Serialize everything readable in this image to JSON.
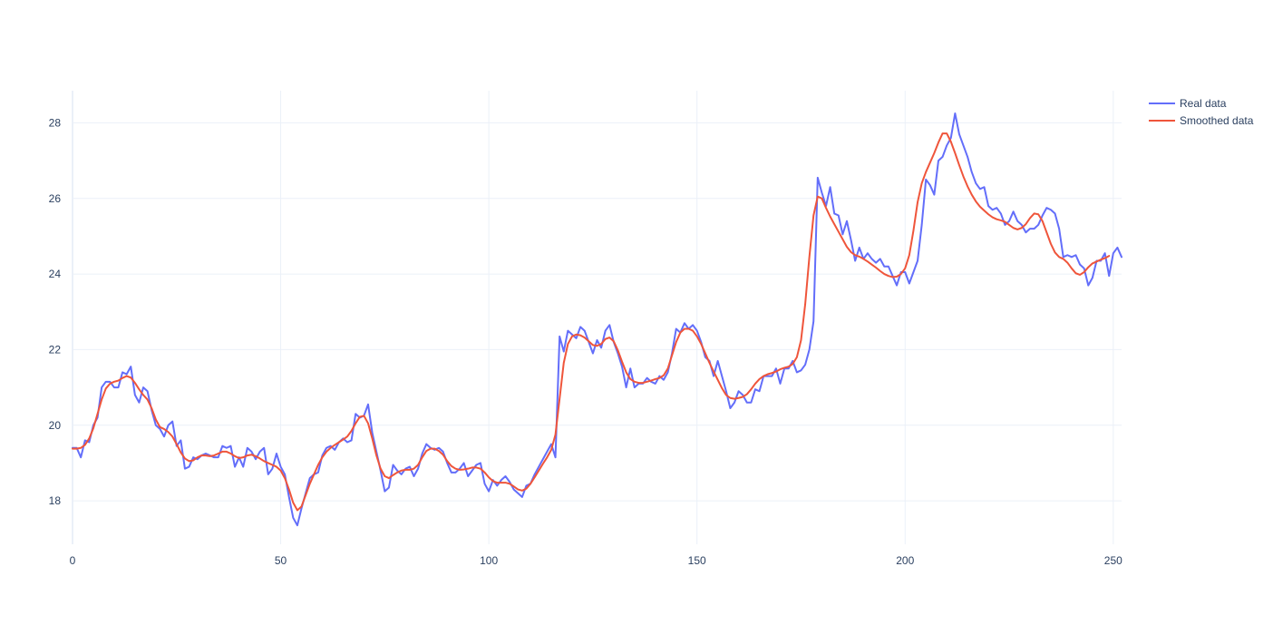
{
  "chart_data": {
    "type": "line",
    "title": "",
    "xlabel": "",
    "ylabel": "",
    "xlim": [
      0,
      252
    ],
    "ylim": [
      16.85,
      28.85
    ],
    "x_ticks": [
      0,
      50,
      100,
      150,
      200,
      250
    ],
    "y_ticks": [
      18,
      20,
      22,
      24,
      26,
      28
    ],
    "grid": true,
    "legend_position": "top-right",
    "series": [
      {
        "name": "Real data",
        "color": "#636efa",
        "x_step": 1,
        "values": [
          19.4,
          19.4,
          19.15,
          19.6,
          19.55,
          20.0,
          20.2,
          21.0,
          21.15,
          21.15,
          21.0,
          21.0,
          21.4,
          21.35,
          21.55,
          20.8,
          20.6,
          21.0,
          20.9,
          20.4,
          20.0,
          19.9,
          19.7,
          20.0,
          20.1,
          19.45,
          19.6,
          18.85,
          18.9,
          19.15,
          19.1,
          19.2,
          19.25,
          19.2,
          19.15,
          19.15,
          19.45,
          19.4,
          19.45,
          18.9,
          19.15,
          18.9,
          19.4,
          19.3,
          19.1,
          19.3,
          19.4,
          18.7,
          18.85,
          19.25,
          18.9,
          18.7,
          18.1,
          17.55,
          17.35,
          17.8,
          18.2,
          18.6,
          18.7,
          18.75,
          19.2,
          19.4,
          19.45,
          19.35,
          19.55,
          19.65,
          19.55,
          19.6,
          20.3,
          20.2,
          20.25,
          20.55,
          19.8,
          19.3,
          18.8,
          18.25,
          18.35,
          18.95,
          18.8,
          18.7,
          18.85,
          18.9,
          18.65,
          18.85,
          19.25,
          19.5,
          19.4,
          19.35,
          19.4,
          19.3,
          19.0,
          18.75,
          18.75,
          18.85,
          19.0,
          18.65,
          18.8,
          18.95,
          19.0,
          18.45,
          18.25,
          18.55,
          18.4,
          18.55,
          18.65,
          18.5,
          18.3,
          18.2,
          18.1,
          18.4,
          18.45,
          18.7,
          18.9,
          19.1,
          19.3,
          19.5,
          19.15,
          22.35,
          21.95,
          22.5,
          22.4,
          22.3,
          22.6,
          22.5,
          22.2,
          21.9,
          22.25,
          22.05,
          22.5,
          22.65,
          22.2,
          21.9,
          21.55,
          21.0,
          21.5,
          21.0,
          21.1,
          21.1,
          21.25,
          21.15,
          21.1,
          21.3,
          21.2,
          21.4,
          21.9,
          22.55,
          22.45,
          22.7,
          22.55,
          22.65,
          22.5,
          22.2,
          21.8,
          21.7,
          21.3,
          21.7,
          21.3,
          20.9,
          20.45,
          20.6,
          20.9,
          20.8,
          20.6,
          20.6,
          20.95,
          20.9,
          21.3,
          21.3,
          21.3,
          21.5,
          21.1,
          21.5,
          21.5,
          21.7,
          21.4,
          21.45,
          21.6,
          22.0,
          22.75,
          26.55,
          26.15,
          25.8,
          26.3,
          25.6,
          25.55,
          25.05,
          25.4,
          24.9,
          24.35,
          24.7,
          24.4,
          24.55,
          24.4,
          24.3,
          24.4,
          24.2,
          24.2,
          23.95,
          23.7,
          24.05,
          24.05,
          23.75,
          24.05,
          24.35,
          25.3,
          26.5,
          26.35,
          26.1,
          27.0,
          27.1,
          27.4,
          27.6,
          28.25,
          27.7,
          27.4,
          27.1,
          26.7,
          26.4,
          26.25,
          26.3,
          25.8,
          25.7,
          25.75,
          25.6,
          25.3,
          25.4,
          25.65,
          25.4,
          25.3,
          25.1,
          25.2,
          25.2,
          25.3,
          25.55,
          25.75,
          25.7,
          25.6,
          25.2,
          24.45,
          24.5,
          24.45,
          24.5,
          24.25,
          24.15,
          23.7,
          23.9,
          24.35,
          24.35,
          24.55,
          23.95,
          24.55,
          24.7,
          24.45
        ]
      },
      {
        "name": "Smoothed data",
        "color": "#ef553b",
        "x_step": 1,
        "values": [
          19.38,
          19.38,
          19.4,
          19.48,
          19.65,
          19.92,
          20.3,
          20.68,
          20.97,
          21.1,
          21.15,
          21.18,
          21.25,
          21.3,
          21.26,
          21.12,
          20.95,
          20.8,
          20.68,
          20.45,
          20.15,
          19.95,
          19.9,
          19.82,
          19.7,
          19.5,
          19.28,
          19.12,
          19.05,
          19.07,
          19.15,
          19.2,
          19.2,
          19.18,
          19.2,
          19.25,
          19.3,
          19.3,
          19.25,
          19.18,
          19.13,
          19.15,
          19.2,
          19.22,
          19.18,
          19.12,
          19.05,
          19.0,
          18.95,
          18.9,
          18.8,
          18.6,
          18.3,
          17.95,
          17.75,
          17.85,
          18.15,
          18.45,
          18.7,
          18.95,
          19.15,
          19.3,
          19.4,
          19.48,
          19.55,
          19.62,
          19.7,
          19.85,
          20.05,
          20.22,
          20.25,
          20.05,
          19.65,
          19.2,
          18.85,
          18.65,
          18.6,
          18.68,
          18.75,
          18.8,
          18.82,
          18.82,
          18.85,
          18.95,
          19.15,
          19.32,
          19.38,
          19.38,
          19.32,
          19.22,
          19.05,
          18.92,
          18.85,
          18.82,
          18.83,
          18.85,
          18.88,
          18.88,
          18.85,
          18.75,
          18.62,
          18.52,
          18.48,
          18.48,
          18.48,
          18.45,
          18.38,
          18.3,
          18.27,
          18.32,
          18.45,
          18.62,
          18.8,
          18.98,
          19.15,
          19.35,
          19.75,
          20.7,
          21.65,
          22.15,
          22.35,
          22.4,
          22.38,
          22.32,
          22.22,
          22.12,
          22.1,
          22.15,
          22.28,
          22.32,
          22.22,
          21.98,
          21.68,
          21.4,
          21.22,
          21.15,
          21.12,
          21.12,
          21.15,
          21.18,
          21.22,
          21.25,
          21.32,
          21.5,
          21.85,
          22.2,
          22.45,
          22.55,
          22.55,
          22.5,
          22.35,
          22.15,
          21.9,
          21.65,
          21.42,
          21.2,
          20.98,
          20.8,
          20.72,
          20.7,
          20.72,
          20.75,
          20.82,
          20.95,
          21.1,
          21.22,
          21.3,
          21.35,
          21.38,
          21.42,
          21.48,
          21.52,
          21.55,
          21.62,
          21.8,
          22.25,
          23.2,
          24.45,
          25.55,
          26.05,
          26.0,
          25.75,
          25.52,
          25.32,
          25.12,
          24.92,
          24.72,
          24.58,
          24.5,
          24.46,
          24.4,
          24.33,
          24.25,
          24.17,
          24.08,
          24.0,
          23.95,
          23.92,
          23.93,
          24.0,
          24.15,
          24.5,
          25.15,
          25.9,
          26.4,
          26.7,
          26.95,
          27.2,
          27.48,
          27.72,
          27.72,
          27.5,
          27.2,
          26.88,
          26.58,
          26.32,
          26.1,
          25.92,
          25.78,
          25.68,
          25.58,
          25.5,
          25.45,
          25.42,
          25.38,
          25.3,
          25.22,
          25.18,
          25.22,
          25.32,
          25.48,
          25.6,
          25.58,
          25.4,
          25.1,
          24.8,
          24.57,
          24.45,
          24.4,
          24.3,
          24.15,
          24.02,
          23.98,
          24.05,
          24.18,
          24.28,
          24.33,
          24.38,
          24.42,
          24.48
        ]
      }
    ]
  }
}
